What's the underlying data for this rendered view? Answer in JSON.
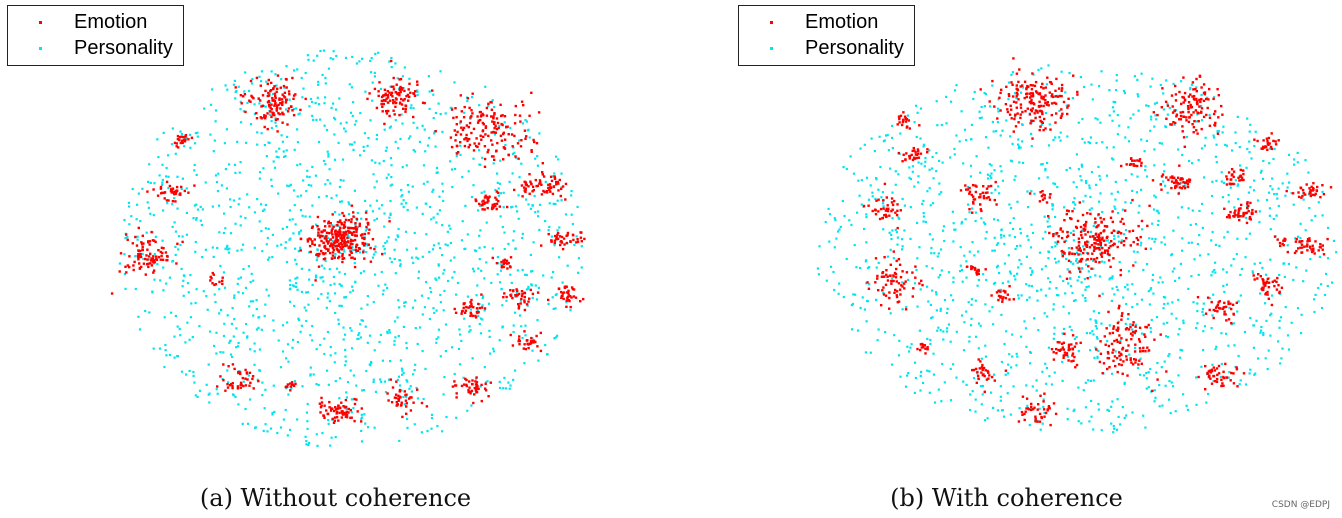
{
  "chart_data": [
    {
      "type": "scatter",
      "caption": "(a) Without coherence",
      "legend_position": "top-left",
      "series": [
        {
          "name": "Emotion",
          "color": "#ff0000"
        },
        {
          "name": "Personality",
          "color": "#00e5ee"
        }
      ],
      "grid": false,
      "axes_visible": false
    },
    {
      "type": "scatter",
      "caption": "(b) With coherence",
      "legend_position": "top-left",
      "series": [
        {
          "name": "Emotion",
          "color": "#ff0000"
        },
        {
          "name": "Personality",
          "color": "#00e5ee"
        }
      ],
      "grid": false,
      "axes_visible": false
    }
  ],
  "watermark": "CSDN @EDPJ"
}
